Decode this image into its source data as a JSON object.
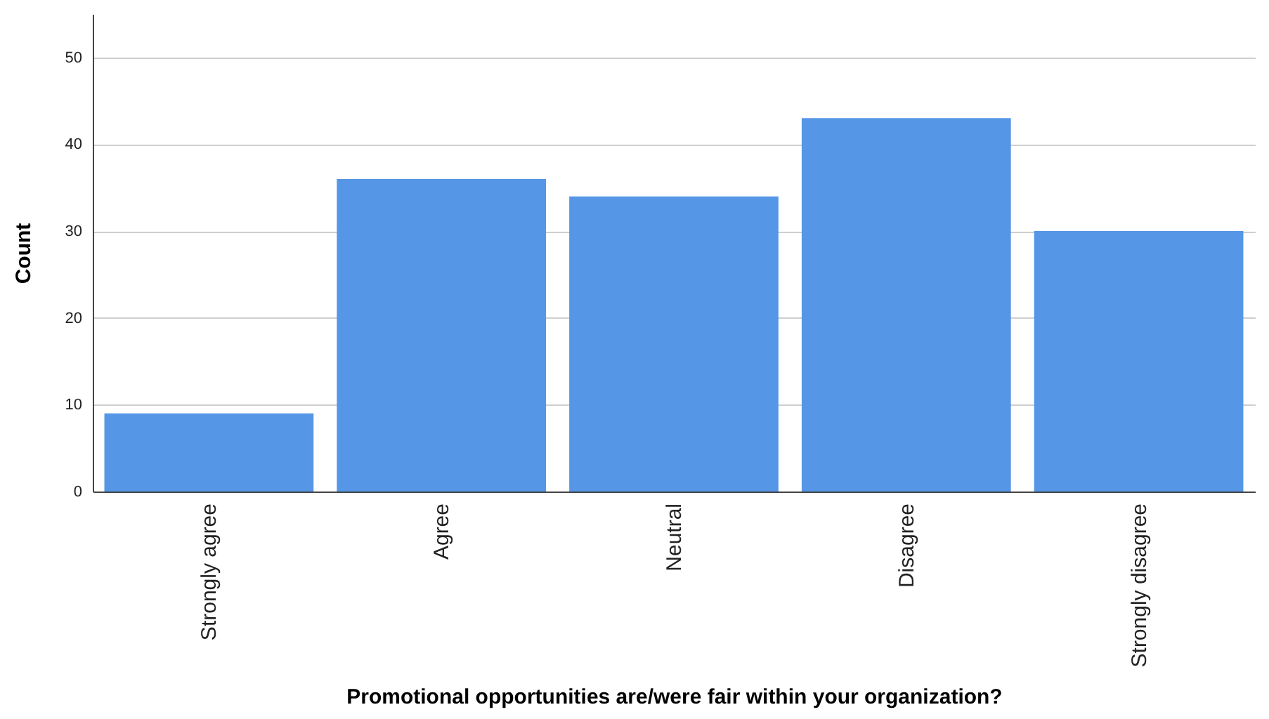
{
  "chart_data": {
    "type": "bar",
    "xlabel": "Promotional opportunities are/were fair within your organization?",
    "ylabel": "Count",
    "categories": [
      "Strongly agree",
      "Agree",
      "Neutral",
      "Disagree",
      "Strongly disagree"
    ],
    "values": [
      9,
      36,
      34,
      43,
      30
    ],
    "color": "#5596e6",
    "ylim": [
      0,
      55
    ],
    "yticks": [
      0,
      10,
      20,
      30,
      40,
      50
    ],
    "grid": "y"
  }
}
